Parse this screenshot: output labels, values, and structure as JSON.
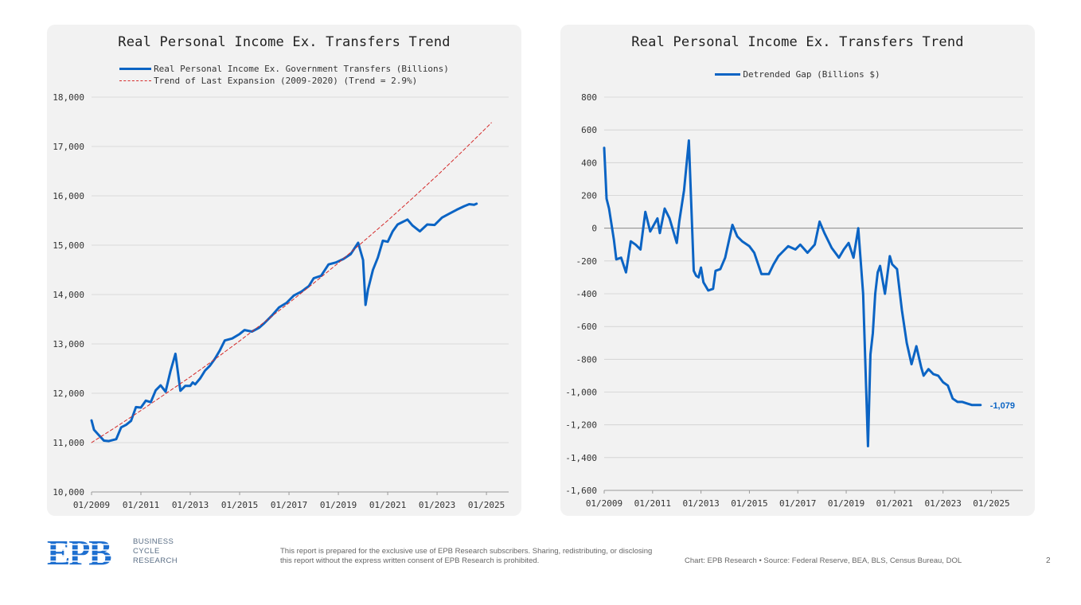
{
  "chart_data": [
    {
      "type": "line",
      "title": "Real Personal Income Ex. Transfers Trend",
      "ylim": [
        10000,
        18000
      ],
      "y_ticks": [
        "10,000",
        "11,000",
        "12,000",
        "13,000",
        "14,000",
        "15,000",
        "16,000",
        "17,000",
        "18,000"
      ],
      "y_tick_values": [
        10000,
        11000,
        12000,
        13000,
        14000,
        15000,
        16000,
        17000,
        18000
      ],
      "x_ticks": [
        "01/2009",
        "01/2011",
        "01/2013",
        "01/2015",
        "01/2017",
        "01/2019",
        "01/2021",
        "01/2023",
        "01/2025"
      ],
      "x_tick_values": [
        2009,
        2011,
        2013,
        2015,
        2017,
        2019,
        2021,
        2023,
        2025
      ],
      "xlim": [
        2009,
        2025.9
      ],
      "grid": true,
      "legend_position": "top",
      "series": [
        {
          "name": "Real Personal Income Ex. Government Transfers (Billions)",
          "color": "#0b64c4",
          "style": "solid",
          "x": [
            2009.0,
            2009.1,
            2009.3,
            2009.5,
            2009.7,
            2010.0,
            2010.2,
            2010.4,
            2010.6,
            2010.8,
            2011.0,
            2011.2,
            2011.4,
            2011.6,
            2011.8,
            2012.0,
            2012.2,
            2012.4,
            2012.6,
            2012.8,
            2013.0,
            2013.1,
            2013.2,
            2013.4,
            2013.6,
            2013.8,
            2014.0,
            2014.2,
            2014.4,
            2014.7,
            2015.0,
            2015.2,
            2015.5,
            2015.8,
            2016.0,
            2016.3,
            2016.6,
            2016.9,
            2017.2,
            2017.5,
            2017.8,
            2018.0,
            2018.3,
            2018.6,
            2018.9,
            2019.2,
            2019.5,
            2019.8,
            2020.0,
            2020.1,
            2020.2,
            2020.4,
            2020.6,
            2020.8,
            2021.0,
            2021.2,
            2021.4,
            2021.6,
            2021.8,
            2022.0,
            2022.3,
            2022.6,
            2022.9,
            2023.2,
            2023.5,
            2023.8,
            2024.1,
            2024.3,
            2024.5,
            2024.6
          ],
          "y": [
            11450,
            11260,
            11150,
            11040,
            11030,
            11070,
            11310,
            11360,
            11440,
            11720,
            11710,
            11850,
            11820,
            12060,
            12160,
            12030,
            12450,
            12800,
            12050,
            12150,
            12150,
            12220,
            12180,
            12300,
            12460,
            12560,
            12700,
            12870,
            13070,
            13110,
            13200,
            13280,
            13250,
            13330,
            13420,
            13570,
            13740,
            13830,
            13980,
            14060,
            14170,
            14330,
            14380,
            14610,
            14650,
            14720,
            14820,
            15050,
            14700,
            13790,
            14100,
            14500,
            14750,
            15090,
            15070,
            15280,
            15420,
            15470,
            15520,
            15400,
            15280,
            15420,
            15410,
            15560,
            15640,
            15720,
            15790,
            15830,
            15820,
            15840
          ]
        },
        {
          "name": "Trend of Last Expansion (2009-2020) (Trend = 2.9%)",
          "color": "#d42a2a",
          "style": "dashed",
          "x": [
            2009.0,
            2010.0,
            2011.0,
            2012.0,
            2013.0,
            2014.0,
            2015.0,
            2016.0,
            2017.0,
            2018.0,
            2019.0,
            2020.0,
            2021.0,
            2022.0,
            2023.0,
            2024.0,
            2025.0,
            2025.2
          ],
          "y": [
            11000,
            11320,
            11650,
            11990,
            12330,
            12690,
            13060,
            13440,
            13830,
            14230,
            14640,
            15070,
            15500,
            15950,
            16410,
            16890,
            17380,
            17480
          ]
        }
      ]
    },
    {
      "type": "line",
      "title": "Real Personal Income Ex. Transfers Trend",
      "ylim": [
        -1600,
        800
      ],
      "y_ticks": [
        "-1,600",
        "-1,400",
        "-1,200",
        "-1,000",
        "-800",
        "-600",
        "-400",
        "-200",
        "0",
        "200",
        "400",
        "600",
        "800"
      ],
      "y_tick_values": [
        -1600,
        -1400,
        -1200,
        -1000,
        -800,
        -600,
        -400,
        -200,
        0,
        200,
        400,
        600,
        800
      ],
      "x_ticks": [
        "01/2009",
        "01/2011",
        "01/2013",
        "01/2015",
        "01/2017",
        "01/2019",
        "01/2021",
        "01/2023",
        "01/2025"
      ],
      "x_tick_values": [
        2009,
        2011,
        2013,
        2015,
        2017,
        2019,
        2021,
        2023,
        2025
      ],
      "xlim": [
        2009,
        2026.3
      ],
      "grid": true,
      "legend_position": "top",
      "end_label": "-1,079",
      "series": [
        {
          "name": "Detrended Gap (Billions $)",
          "color": "#0b64c4",
          "style": "solid",
          "x": [
            2009.0,
            2009.1,
            2009.2,
            2009.4,
            2009.5,
            2009.7,
            2009.9,
            2010.1,
            2010.3,
            2010.5,
            2010.7,
            2010.9,
            2011.2,
            2011.3,
            2011.5,
            2011.7,
            2012.0,
            2012.1,
            2012.3,
            2012.5,
            2012.7,
            2012.8,
            2012.9,
            2013.0,
            2013.1,
            2013.3,
            2013.5,
            2013.6,
            2013.8,
            2014.0,
            2014.3,
            2014.5,
            2014.7,
            2015.0,
            2015.2,
            2015.5,
            2015.8,
            2016.0,
            2016.2,
            2016.4,
            2016.6,
            2016.9,
            2017.1,
            2017.4,
            2017.7,
            2017.9,
            2018.1,
            2018.4,
            2018.7,
            2018.9,
            2019.1,
            2019.3,
            2019.5,
            2019.7,
            2019.9,
            2020.0,
            2020.1,
            2020.2,
            2020.3,
            2020.4,
            2020.6,
            2020.8,
            2020.9,
            2021.1,
            2021.3,
            2021.5,
            2021.7,
            2021.9,
            2022.1,
            2022.2,
            2022.4,
            2022.6,
            2022.8,
            2023.0,
            2023.2,
            2023.4,
            2023.6,
            2023.8,
            2024.0,
            2024.2,
            2024.4,
            2024.55
          ],
          "y": [
            490,
            180,
            120,
            -70,
            -190,
            -180,
            -270,
            -80,
            -100,
            -130,
            100,
            -20,
            60,
            -30,
            120,
            60,
            -90,
            40,
            230,
            535,
            -260,
            -290,
            -300,
            -240,
            -330,
            -380,
            -370,
            -260,
            -250,
            -180,
            20,
            -50,
            -80,
            -110,
            -150,
            -280,
            -280,
            -220,
            -170,
            -140,
            -110,
            -130,
            -100,
            -150,
            -100,
            40,
            -30,
            -120,
            -180,
            -130,
            -90,
            -180,
            0,
            -400,
            -1330,
            -770,
            -640,
            -400,
            -270,
            -230,
            -400,
            -170,
            -220,
            -250,
            -500,
            -700,
            -830,
            -720,
            -850,
            -900,
            -860,
            -890,
            -900,
            -940,
            -960,
            -1040,
            -1060,
            -1060,
            -1070,
            -1079,
            -1079,
            -1079
          ]
        }
      ]
    }
  ],
  "footer": {
    "logo_letters": "EPB",
    "logo_line1": "BUSINESS",
    "logo_line2": "CYCLE",
    "logo_line3": "RESEARCH",
    "disclaimer": "This report is prepared for the exclusive use of EPB Research subscribers. Sharing, redistributing, or disclosing this report without the express written consent of EPB Research is prohibited.",
    "source": "Chart: EPB Research  •  Source: Federal Reserve, BEA, BLS, Census Bureau, DOL",
    "page_number": "2"
  }
}
